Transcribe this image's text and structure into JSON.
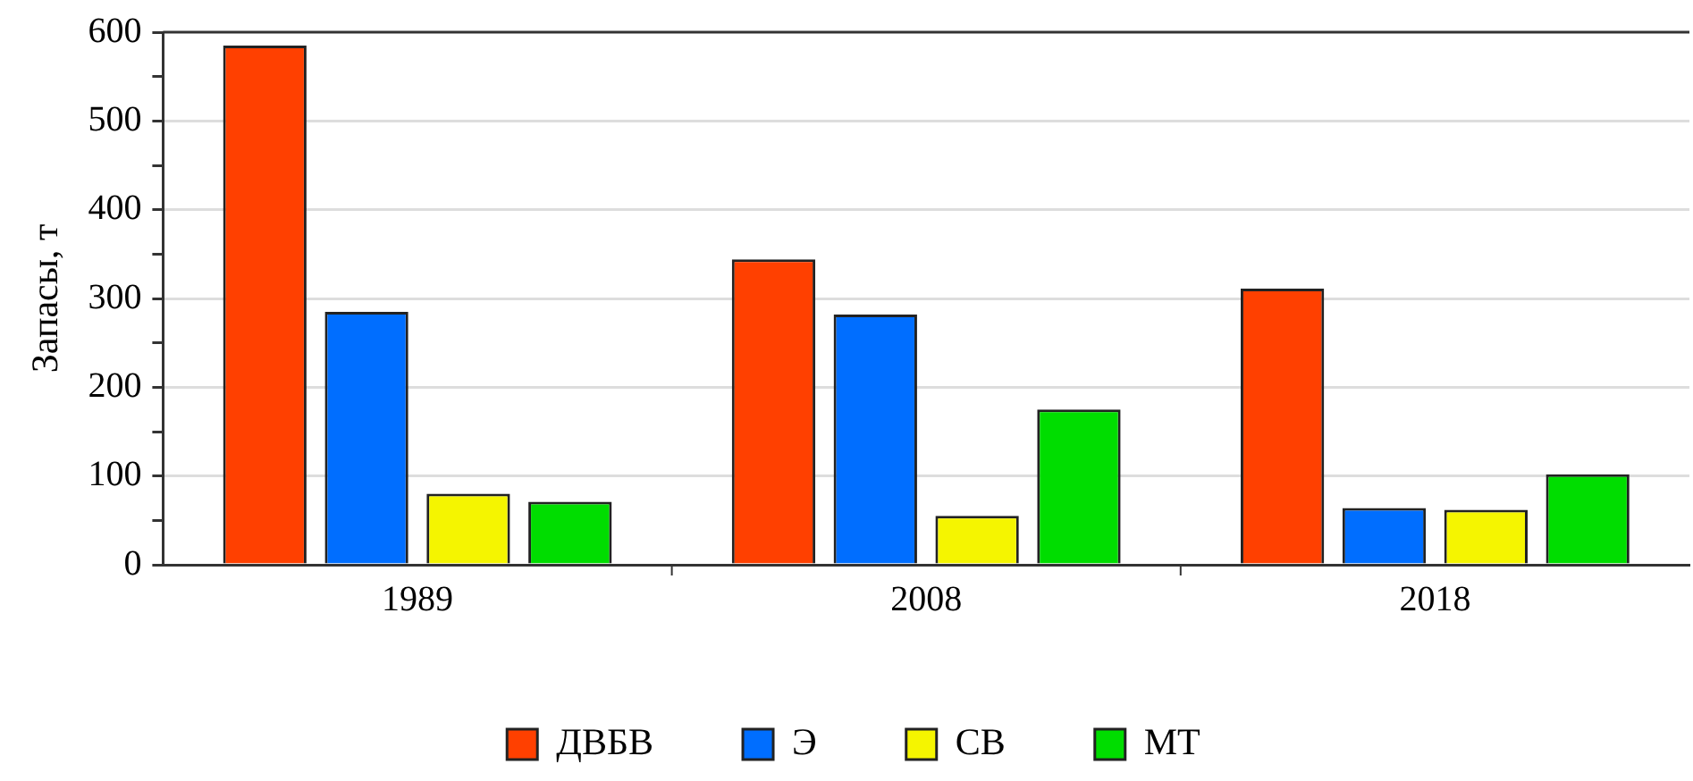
{
  "chart_data": {
    "type": "bar",
    "ylabel": "Запасы, т",
    "categories": [
      "1989",
      "2008",
      "2018"
    ],
    "series": [
      {
        "name": "ДВБВ",
        "color": "#ff4000",
        "values": [
          585,
          344,
          311
        ]
      },
      {
        "name": "Э",
        "color": "#006eff",
        "values": [
          285,
          282,
          64
        ]
      },
      {
        "name": "СВ",
        "color": "#f5f500",
        "values": [
          80,
          55,
          62
        ]
      },
      {
        "name": "МТ",
        "color": "#00dd00",
        "values": [
          71,
          175,
          102
        ]
      }
    ],
    "ylim": [
      0,
      600
    ],
    "yticks": [
      0,
      {
        "value": 50,
        "label": null
      },
      100,
      {
        "value": 150,
        "label": null
      },
      200,
      {
        "value": 250,
        "label": null
      },
      300,
      {
        "value": 350,
        "label": null
      },
      400,
      {
        "value": 450,
        "label": null
      },
      500,
      {
        "value": 550,
        "label": null
      },
      600
    ],
    "grid": "y",
    "legend": "bottom"
  }
}
